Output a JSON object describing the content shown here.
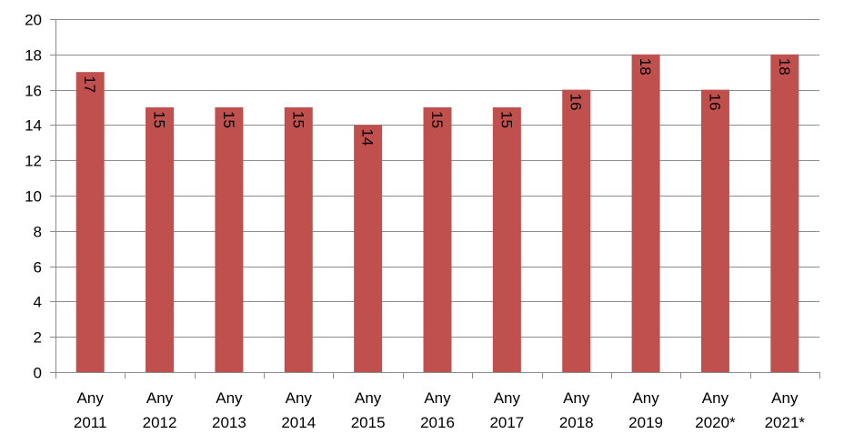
{
  "chart_data": {
    "type": "bar",
    "categories": [
      [
        "Any",
        "2011"
      ],
      [
        "Any",
        "2012"
      ],
      [
        "Any",
        "2013"
      ],
      [
        "Any",
        "2014"
      ],
      [
        "Any",
        "2015"
      ],
      [
        "Any",
        "2016"
      ],
      [
        "Any",
        "2017"
      ],
      [
        "Any",
        "2018"
      ],
      [
        "Any",
        "2019"
      ],
      [
        "Any",
        "2020*"
      ],
      [
        "Any",
        "2021*"
      ]
    ],
    "values": [
      17,
      15,
      15,
      15,
      14,
      15,
      15,
      16,
      18,
      16,
      18
    ],
    "data_labels": [
      "17",
      "15",
      "15",
      "15",
      "14",
      "15",
      "15",
      "16",
      "18",
      "16",
      "18"
    ],
    "ylim": [
      0,
      20
    ],
    "yticks": [
      0,
      2,
      4,
      6,
      8,
      10,
      12,
      14,
      16,
      18,
      20
    ],
    "grid": true,
    "bar_color": "#c0504d",
    "legend": "none"
  }
}
